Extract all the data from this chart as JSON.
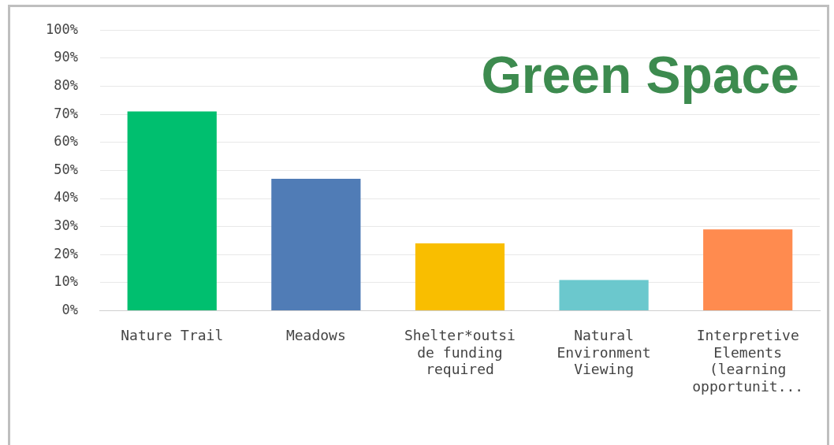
{
  "chart_data": {
    "type": "bar",
    "title": "Green Space",
    "categories": [
      "Nature Trail",
      "Meadows",
      "Shelter*outside funding required",
      "Natural Environment Viewing",
      "Interpretive Elements (learning opportunit..."
    ],
    "values": [
      71,
      47,
      24,
      11,
      29
    ],
    "colors": [
      "#00bf6f",
      "#507cb6",
      "#f9be00",
      "#6bc8cd",
      "#ff8b4f"
    ],
    "ylim": [
      0,
      100
    ],
    "yticks": [
      {
        "value": 0,
        "label": "0%"
      },
      {
        "value": 10,
        "label": "10%"
      },
      {
        "value": 20,
        "label": "20%"
      },
      {
        "value": 30,
        "label": "30%"
      },
      {
        "value": 40,
        "label": "40%"
      },
      {
        "value": 50,
        "label": "50%"
      },
      {
        "value": 60,
        "label": "60%"
      },
      {
        "value": 70,
        "label": "70%"
      },
      {
        "value": 80,
        "label": "80%"
      },
      {
        "value": 90,
        "label": "90%"
      },
      {
        "value": 100,
        "label": "100%"
      }
    ],
    "grid": "y"
  }
}
